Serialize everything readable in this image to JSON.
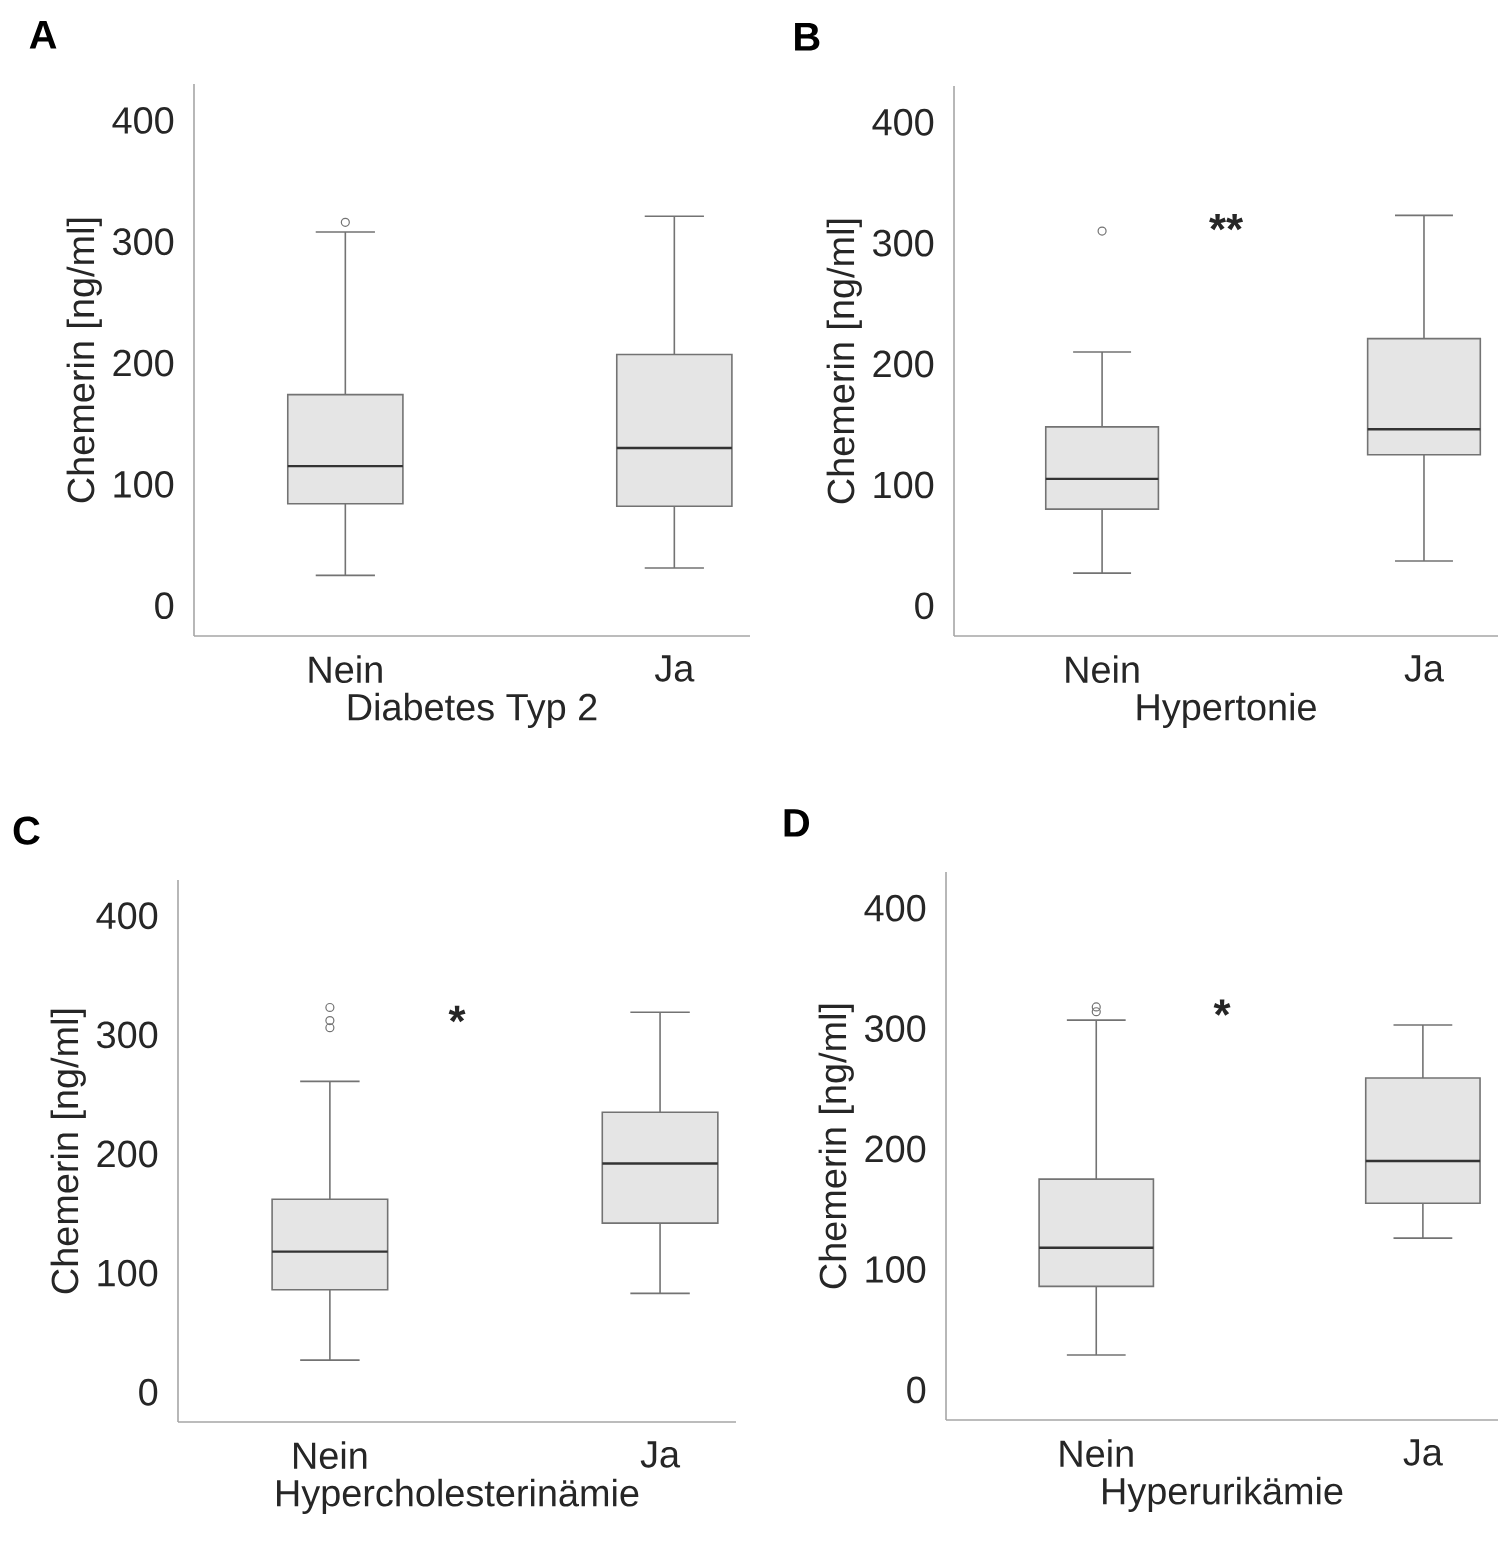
{
  "chart_data": [
    {
      "type": "box",
      "title": "A",
      "xlabel": "Diabetes Typ 2",
      "ylabel": "Chemerin [ng/ml]",
      "categories": [
        "Nein",
        "Ja"
      ],
      "ylim": [
        -25,
        430
      ],
      "yticks": [
        0,
        100,
        200,
        300,
        400
      ],
      "boxes": [
        {
          "low": 25,
          "q1": 84,
          "median": 115,
          "q3": 174,
          "high": 308,
          "outliers": [
            316
          ]
        },
        {
          "low": 31,
          "q1": 82,
          "median": 130,
          "q3": 207,
          "high": 321
        }
      ]
    },
    {
      "type": "box",
      "title": "B",
      "xlabel": "Hypertonie",
      "ylabel": "Chemerin [ng/ml]",
      "categories": [
        "Nein",
        "Ja"
      ],
      "ylim": [
        -25,
        430
      ],
      "yticks": [
        0,
        100,
        200,
        300,
        400
      ],
      "annotations": [
        "**"
      ],
      "boxes": [
        {
          "low": 27,
          "q1": 80,
          "median": 105,
          "q3": 148,
          "high": 210,
          "outliers": [
            310
          ]
        },
        {
          "low": 37,
          "q1": 125,
          "median": 146,
          "q3": 221,
          "high": 323
        }
      ]
    },
    {
      "type": "box",
      "title": "C",
      "xlabel": "Hypercholesterinämie",
      "ylabel": "Chemerin [ng/ml]",
      "categories": [
        "Nein",
        "Ja"
      ],
      "ylim": [
        -25,
        430
      ],
      "yticks": [
        0,
        100,
        200,
        300,
        400
      ],
      "annotations": [
        "*"
      ],
      "boxes": [
        {
          "low": 27,
          "q1": 86,
          "median": 118,
          "q3": 162,
          "high": 261,
          "outliers": [
            323,
            312,
            306
          ]
        },
        {
          "low": 83,
          "q1": 142,
          "median": 192,
          "q3": 235,
          "high": 319
        }
      ]
    },
    {
      "type": "box",
      "title": "D",
      "xlabel": "Hyperurikämie",
      "ylabel": "Chemerin [ng/ml]",
      "categories": [
        "Nein",
        "Ja"
      ],
      "ylim": [
        -25,
        430
      ],
      "yticks": [
        0,
        100,
        200,
        300,
        400
      ],
      "annotations": [
        "*"
      ],
      "boxes": [
        {
          "low": 29,
          "q1": 86,
          "median": 118,
          "q3": 175,
          "high": 307,
          "outliers": [
            318,
            314
          ]
        },
        {
          "low": 126,
          "q1": 155,
          "median": 190,
          "q3": 259,
          "high": 303
        }
      ]
    }
  ]
}
